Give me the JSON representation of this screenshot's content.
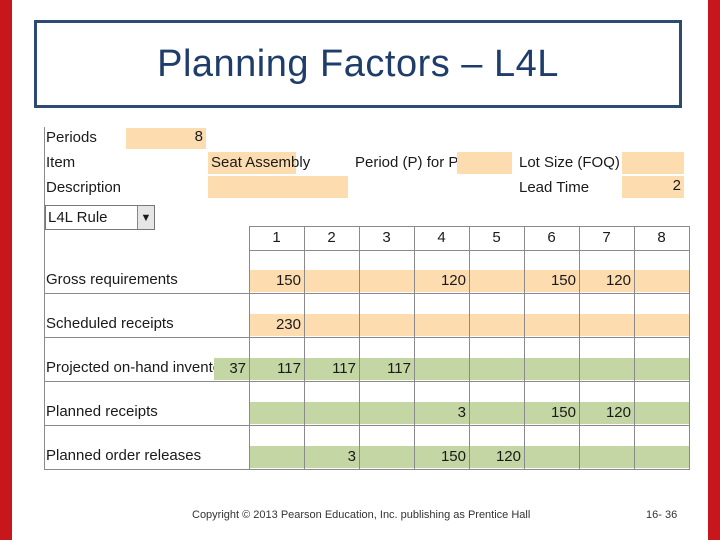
{
  "title": "Planning Factors – L4L",
  "params": {
    "periods_label": "Periods",
    "periods_value": "8",
    "item_label": "Item",
    "item_value": "Seat Assembly",
    "description_label": "Description",
    "period_poq_label": "Period (P) for POQ",
    "lot_size_label": "Lot Size (FOQ)",
    "lead_time_label": "Lead Time",
    "lead_time_value": "2",
    "rule_value": "L4L Rule",
    "rule_dropdown_icon": "triangle-down-icon"
  },
  "table": {
    "periods": [
      "1",
      "2",
      "3",
      "4",
      "5",
      "6",
      "7",
      "8"
    ],
    "rows": [
      {
        "label": "Gross requirements",
        "initial": "",
        "values": [
          "150",
          "",
          "",
          "120",
          "",
          "150",
          "120",
          ""
        ]
      },
      {
        "label": "Scheduled receipts",
        "initial": "",
        "values": [
          "230",
          "",
          "",
          "",
          "",
          "",
          "",
          ""
        ]
      },
      {
        "label": "Projected on-hand inventory",
        "initial": "37",
        "values": [
          "117",
          "117",
          "117",
          "",
          "",
          "",
          "",
          ""
        ]
      },
      {
        "label": "Planned receipts",
        "initial": "",
        "values": [
          "",
          "",
          "",
          "3",
          "",
          "150",
          "120",
          ""
        ]
      },
      {
        "label": "Planned order releases",
        "initial": "",
        "values": [
          "",
          "3",
          "",
          "150",
          "120",
          "",
          "",
          ""
        ]
      }
    ]
  },
  "footer": {
    "copyright": "Copyright © 2013 Pearson Education, Inc. publishing as Prentice Hall",
    "page": "16- 36"
  },
  "colors": {
    "border": "#c8161d",
    "title": "#1f3d6b",
    "input_cell": "#fddcb0",
    "output_cell": "#c3d6a3"
  }
}
